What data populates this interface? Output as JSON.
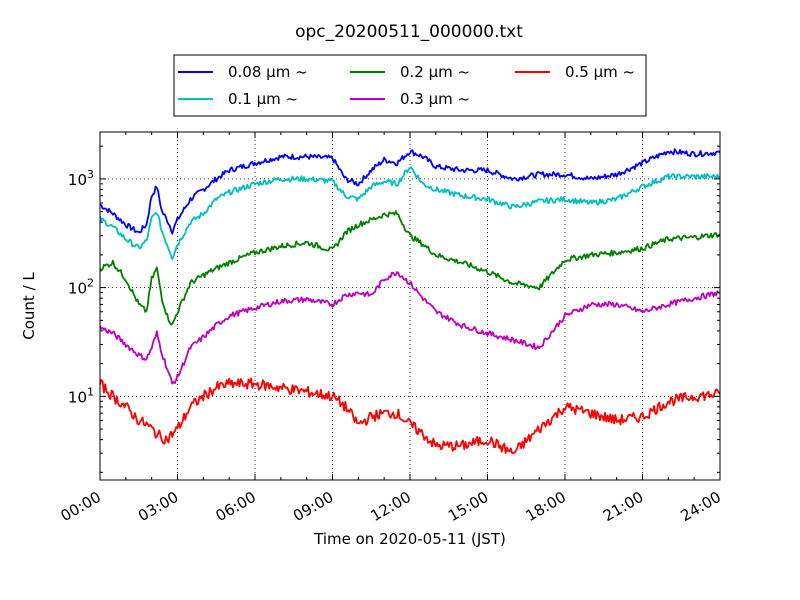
{
  "chart_data": {
    "type": "line",
    "title": "opc_20200511_000000.txt",
    "xlabel": "Time on 2020-05-11 (JST)",
    "ylabel": "Count / L",
    "yscale": "log",
    "ylim": [
      1.7,
      2700
    ],
    "xlim": [
      "00:00",
      "24:00"
    ],
    "grid": true,
    "legend": "top, above plot, 3 columns",
    "x_ticks": [
      "00:00",
      "03:00",
      "06:00",
      "09:00",
      "12:00",
      "15:00",
      "18:00",
      "21:00",
      "24:00"
    ],
    "y_ticks": [
      {
        "value": 10,
        "base": "10",
        "exp": "1"
      },
      {
        "value": 100,
        "base": "10",
        "exp": "2"
      },
      {
        "value": 1000,
        "base": "10",
        "exp": "3"
      }
    ],
    "x_hours": [
      0,
      0.5,
      1,
      1.5,
      1.8,
      2.0,
      2.2,
      2.4,
      2.6,
      2.8,
      3.0,
      3.5,
      4.0,
      4.5,
      5.0,
      6.0,
      7.0,
      8.0,
      9.0,
      9.5,
      10.0,
      10.5,
      11.0,
      11.5,
      12.0,
      12.5,
      13.0,
      14.0,
      15.0,
      16.0,
      17.0,
      18.0,
      19.0,
      20.0,
      21.0,
      22.0,
      23.0,
      24.0
    ],
    "series": [
      {
        "name": "0.08 μm ~",
        "color": "#0000ff",
        "values": [
          580,
          480,
          380,
          320,
          380,
          700,
          850,
          500,
          420,
          330,
          420,
          650,
          800,
          1000,
          1200,
          1400,
          1600,
          1600,
          1550,
          1000,
          900,
          1200,
          1500,
          1400,
          1800,
          1600,
          1300,
          1200,
          1200,
          1000,
          1100,
          1100,
          1000,
          1100,
          1400,
          1800,
          1700,
          1750
        ]
      },
      {
        "name": "0.1 μm ~",
        "color": "#00bfbf",
        "values": [
          430,
          360,
          280,
          230,
          270,
          430,
          500,
          330,
          250,
          190,
          250,
          400,
          480,
          650,
          750,
          900,
          1000,
          1000,
          950,
          700,
          650,
          850,
          950,
          900,
          1300,
          900,
          800,
          700,
          650,
          550,
          620,
          650,
          600,
          650,
          850,
          1050,
          1050,
          1050
        ]
      },
      {
        "name": "0.2 μm ~",
        "color": "#008000",
        "values": [
          150,
          170,
          120,
          70,
          60,
          120,
          150,
          80,
          55,
          45,
          60,
          110,
          130,
          150,
          170,
          210,
          240,
          260,
          220,
          320,
          380,
          420,
          470,
          480,
          300,
          250,
          200,
          170,
          140,
          110,
          100,
          180,
          200,
          210,
          230,
          280,
          290,
          310
        ]
      },
      {
        "name": "0.3 μm ~",
        "color": "#bf00bf",
        "values": [
          43,
          38,
          30,
          24,
          22,
          28,
          38,
          25,
          18,
          13,
          15,
          28,
          35,
          45,
          55,
          65,
          75,
          78,
          70,
          85,
          90,
          85,
          120,
          140,
          110,
          80,
          60,
          45,
          38,
          33,
          28,
          55,
          70,
          70,
          60,
          70,
          80,
          90
        ]
      },
      {
        "name": "0.5 μm ~",
        "color": "#ff0000",
        "values": [
          13,
          10,
          8,
          6,
          5.5,
          5,
          4.5,
          4.2,
          4.0,
          4.5,
          5.0,
          8,
          10,
          12,
          13,
          13,
          12,
          11,
          10,
          8,
          5.5,
          6.5,
          7,
          7,
          5.5,
          4.5,
          3.5,
          3.5,
          4.0,
          3.0,
          5,
          8,
          7,
          6,
          6.5,
          9,
          10,
          10.5
        ]
      }
    ]
  }
}
